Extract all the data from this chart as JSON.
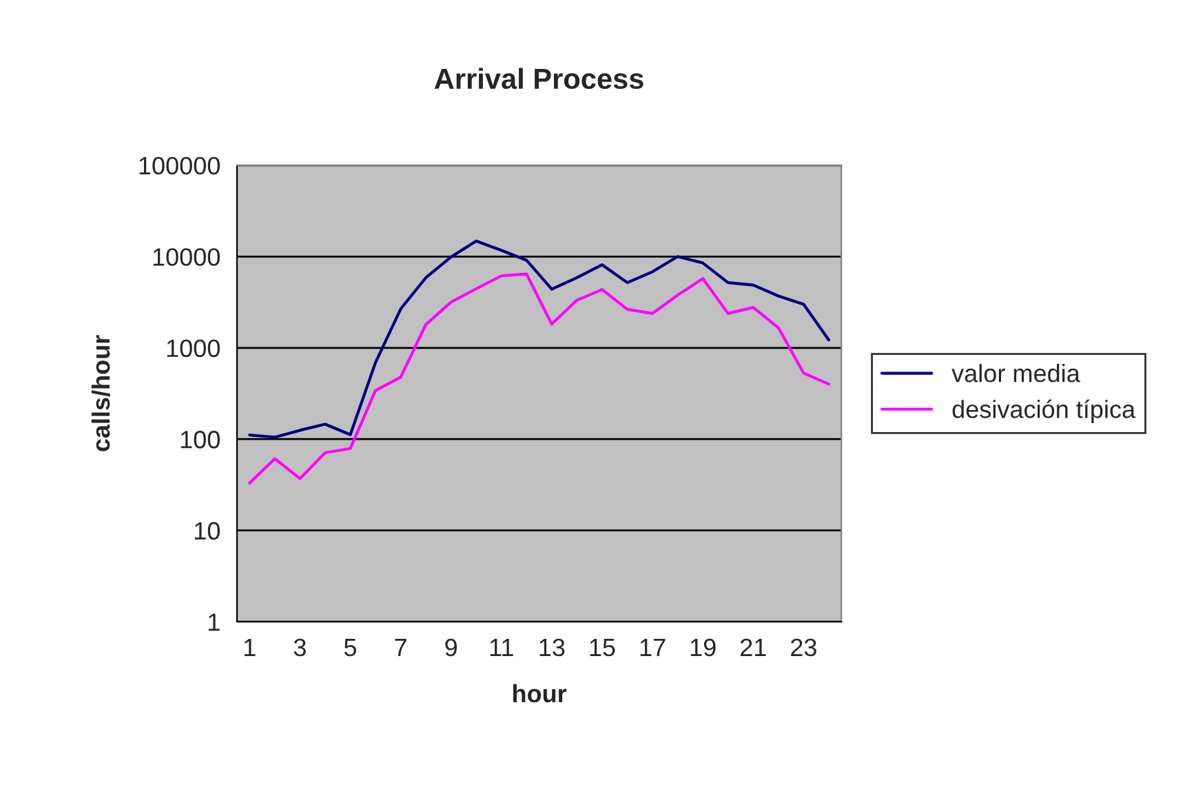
{
  "chart_data": {
    "type": "line",
    "title": "Arrival Process",
    "xlabel": "hour",
    "ylabel": "calls/hour",
    "categories": [
      "1",
      null,
      "3",
      null,
      "5",
      null,
      "7",
      null,
      "9",
      null,
      "11",
      null,
      "13",
      null,
      "15",
      null,
      "17",
      null,
      "19",
      null,
      "21",
      null,
      "23",
      null
    ],
    "series": [
      {
        "name": "valor media",
        "color": "#000080",
        "values": [
          111,
          105,
          125,
          146,
          112,
          690,
          2670,
          5870,
          9900,
          14800,
          11700,
          9100,
          4400,
          5870,
          8130,
          5180,
          6820,
          10000,
          8510,
          5180,
          4880,
          3700,
          3000,
          1220
        ]
      },
      {
        "name": "desivación típica",
        "color": "#ff00ff",
        "values": [
          33,
          61,
          37,
          71,
          79,
          341,
          477,
          1800,
          3170,
          4440,
          6150,
          6440,
          1820,
          3330,
          4350,
          2640,
          2380,
          3780,
          5740,
          2380,
          2770,
          1660,
          530,
          401
        ]
      }
    ],
    "log": "y",
    "ylim": [
      1,
      100000
    ],
    "yticks": [
      1,
      10,
      100,
      1000,
      10000,
      100000
    ],
    "grid": "y",
    "legend": "right",
    "marker": "none",
    "line_style": "solid"
  }
}
